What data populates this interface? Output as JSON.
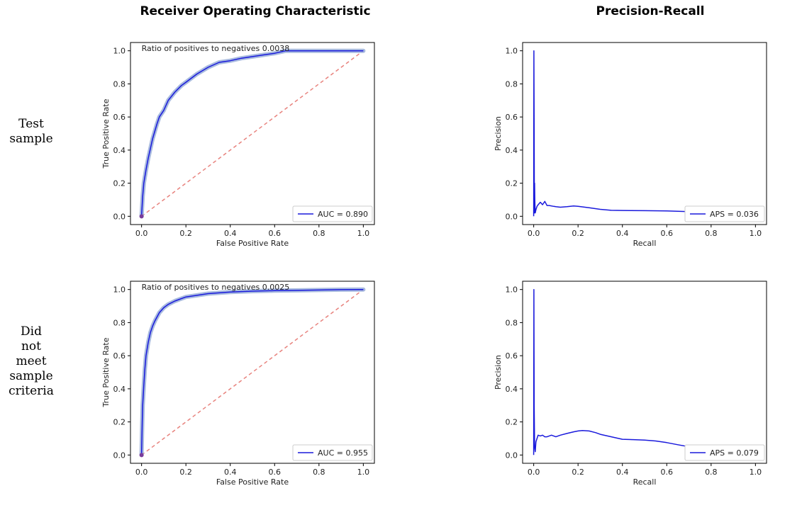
{
  "column_titles": [
    "Receiver Operating Characteristic",
    "Precision-Recall"
  ],
  "row_labels": [
    [
      "Test",
      "sample"
    ],
    [
      "Did",
      "not",
      "meet",
      "sample",
      "criteria"
    ]
  ],
  "colors": {
    "curve": "#1a1adc",
    "band": "#9fb2dc",
    "diagonal": "#e8837e",
    "point": "#7a3c9a"
  },
  "chart_data": [
    {
      "id": "roc-test",
      "type": "line",
      "xlabel": "False Positive Rate",
      "ylabel": "True Positive Rate",
      "xlim": [
        -0.05,
        1.05
      ],
      "ylim": [
        -0.05,
        1.05
      ],
      "xticks": [
        "0.0",
        "0.2",
        "0.4",
        "0.6",
        "0.8",
        "1.0"
      ],
      "yticks": [
        "0.0",
        "0.2",
        "0.4",
        "0.6",
        "0.8",
        "1.0"
      ],
      "annotation": "Ratio of positives to negatives 0.0038",
      "legend": "AUC = 0.890",
      "legend_position": "lower-right",
      "diagonal": true,
      "band": true,
      "series": [
        {
          "x": [
            0,
            0.005,
            0.01,
            0.02,
            0.03,
            0.05,
            0.07,
            0.08,
            0.1,
            0.12,
            0.15,
            0.18,
            0.2,
            0.25,
            0.3,
            0.35,
            0.4,
            0.45,
            0.5,
            0.55,
            0.6,
            0.65,
            0.7,
            0.8,
            0.9,
            1.0
          ],
          "y": [
            0,
            0.12,
            0.2,
            0.28,
            0.35,
            0.47,
            0.56,
            0.6,
            0.64,
            0.7,
            0.75,
            0.79,
            0.81,
            0.86,
            0.9,
            0.93,
            0.94,
            0.955,
            0.965,
            0.975,
            0.985,
            1.0,
            1.0,
            1.0,
            1.0,
            1.0
          ]
        }
      ]
    },
    {
      "id": "pr-test",
      "type": "line",
      "xlabel": "Recall",
      "ylabel": "Precision",
      "xlim": [
        -0.05,
        1.05
      ],
      "ylim": [
        -0.05,
        1.05
      ],
      "xticks": [
        "0.0",
        "0.2",
        "0.4",
        "0.6",
        "0.8",
        "1.0"
      ],
      "yticks": [
        "0.0",
        "0.2",
        "0.4",
        "0.6",
        "0.8",
        "1.0"
      ],
      "legend": "APS = 0.036",
      "legend_position": "lower-right",
      "series": [
        {
          "x": [
            0.0,
            0.001,
            0.002,
            0.003,
            0.004,
            0.005,
            0.007,
            0.01,
            0.015,
            0.02,
            0.03,
            0.04,
            0.05,
            0.06,
            0.07,
            0.09,
            0.1,
            0.12,
            0.15,
            0.18,
            0.2,
            0.25,
            0.3,
            0.35,
            0.4,
            0.5,
            0.6,
            0.7,
            0.75,
            0.8,
            0.9,
            1.0
          ],
          "y": [
            0.0,
            1.0,
            0.5,
            0.02,
            0.2,
            0.1,
            0.02,
            0.04,
            0.06,
            0.07,
            0.085,
            0.07,
            0.09,
            0.065,
            0.065,
            0.06,
            0.058,
            0.055,
            0.058,
            0.062,
            0.06,
            0.052,
            0.042,
            0.036,
            0.035,
            0.034,
            0.032,
            0.028,
            0.026,
            0.024,
            0.02,
            0.018
          ]
        }
      ]
    },
    {
      "id": "roc-notmet",
      "type": "line",
      "xlabel": "False Positive Rate",
      "ylabel": "True Positive Rate",
      "xlim": [
        -0.05,
        1.05
      ],
      "ylim": [
        -0.05,
        1.05
      ],
      "xticks": [
        "0.0",
        "0.2",
        "0.4",
        "0.6",
        "0.8",
        "1.0"
      ],
      "yticks": [
        "0.0",
        "0.2",
        "0.4",
        "0.6",
        "0.8",
        "1.0"
      ],
      "annotation": "Ratio of positives to negatives 0.0025",
      "legend": "AUC = 0.955",
      "legend_position": "lower-right",
      "diagonal": true,
      "band": true,
      "series": [
        {
          "x": [
            0,
            0.003,
            0.005,
            0.01,
            0.015,
            0.02,
            0.03,
            0.04,
            0.05,
            0.06,
            0.08,
            0.1,
            0.12,
            0.15,
            0.2,
            0.25,
            0.3,
            0.4,
            0.5,
            0.6,
            0.7,
            0.8,
            0.9,
            1.0
          ],
          "y": [
            0,
            0.2,
            0.3,
            0.42,
            0.52,
            0.6,
            0.68,
            0.74,
            0.78,
            0.81,
            0.86,
            0.89,
            0.91,
            0.93,
            0.955,
            0.965,
            0.975,
            0.985,
            0.99,
            0.993,
            0.995,
            0.997,
            0.999,
            1.0
          ]
        }
      ]
    },
    {
      "id": "pr-notmet",
      "type": "line",
      "xlabel": "Recall",
      "ylabel": "Precision",
      "xlim": [
        -0.05,
        1.05
      ],
      "ylim": [
        -0.05,
        1.05
      ],
      "xticks": [
        "0.0",
        "0.2",
        "0.4",
        "0.6",
        "0.8",
        "1.0"
      ],
      "yticks": [
        "0.0",
        "0.2",
        "0.4",
        "0.6",
        "0.8",
        "1.0"
      ],
      "legend": "APS = 0.079",
      "legend_position": "lower-right",
      "series": [
        {
          "x": [
            0.0,
            0.001,
            0.002,
            0.004,
            0.007,
            0.01,
            0.015,
            0.02,
            0.03,
            0.04,
            0.05,
            0.06,
            0.07,
            0.08,
            0.1,
            0.12,
            0.15,
            0.18,
            0.2,
            0.22,
            0.25,
            0.28,
            0.3,
            0.35,
            0.4,
            0.45,
            0.5,
            0.55,
            0.6,
            0.65,
            0.7,
            0.75,
            0.8,
            0.9,
            1.0
          ],
          "y": [
            0.0,
            1.0,
            0.3,
            0.05,
            0.02,
            0.08,
            0.1,
            0.12,
            0.115,
            0.12,
            0.11,
            0.11,
            0.115,
            0.12,
            0.11,
            0.12,
            0.13,
            0.14,
            0.145,
            0.148,
            0.145,
            0.135,
            0.125,
            0.11,
            0.095,
            0.093,
            0.09,
            0.085,
            0.075,
            0.062,
            0.05,
            0.04,
            0.032,
            0.02,
            0.015
          ]
        }
      ]
    }
  ]
}
